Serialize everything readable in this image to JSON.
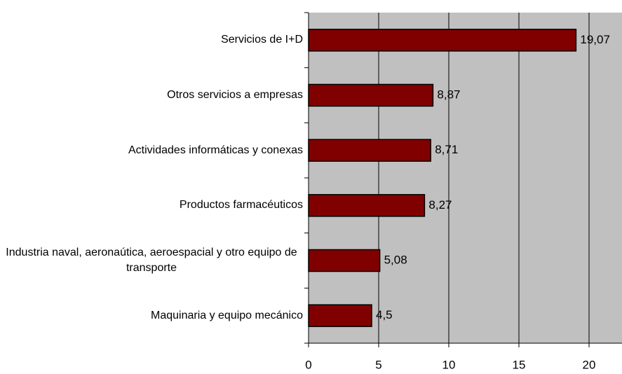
{
  "chart_data": {
    "type": "bar",
    "orientation": "horizontal",
    "categories": [
      "Servicios de I+D",
      "Otros servicios a empresas",
      "Actividades informáticas y conexas",
      "Productos farmacéuticos",
      "Industria naval, aeronaútica, aeroespacial y otro equipo de transporte",
      "Maquinaria y equipo mecánico"
    ],
    "values": [
      19.07,
      8.87,
      8.71,
      8.27,
      5.08,
      4.5
    ],
    "value_labels": [
      "19,07",
      "8,87",
      "8,71",
      "8,27",
      "5,08",
      "4,5"
    ],
    "color": "#800000",
    "xlim": [
      0,
      22.35
    ],
    "xticks": [
      0,
      5,
      10,
      15,
      20
    ],
    "grid": true
  }
}
